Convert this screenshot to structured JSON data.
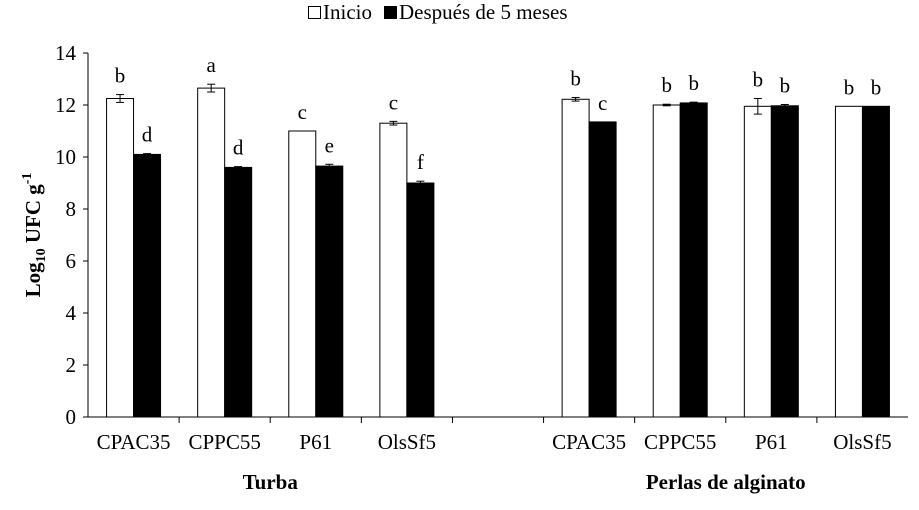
{
  "chart_data": {
    "type": "bar",
    "ylabel_main": "Log",
    "ylabel_sub": "10",
    "ylabel_rest": " UFC g",
    "ylabel_sup": "-1",
    "ylim": [
      0,
      14
    ],
    "yticks": [
      "0",
      "2",
      "4",
      "6",
      "8",
      "10",
      "12",
      "14"
    ],
    "grid": false,
    "legend_position": "top-center",
    "series": [
      {
        "name": "Inicio",
        "color": "#ffffff"
      },
      {
        "name": "Después de 5 meses",
        "color": "#000000"
      }
    ],
    "groups": [
      {
        "label": "Turba",
        "categories": [
          "CPAC35",
          "CPPC55",
          "P61",
          "OlsSf5"
        ],
        "values": [
          [
            12.25,
            10.1
          ],
          [
            12.65,
            9.6
          ],
          [
            11.0,
            9.65
          ],
          [
            11.3,
            9.0
          ]
        ],
        "errors": [
          [
            0.15,
            0.03
          ],
          [
            0.15,
            0.03
          ],
          [
            0.0,
            0.07
          ],
          [
            0.07,
            0.07
          ]
        ],
        "letters": [
          [
            "b",
            "d"
          ],
          [
            "a",
            "d"
          ],
          [
            "c",
            "e"
          ],
          [
            "c",
            "f"
          ]
        ]
      },
      {
        "label": "Perlas de alginato",
        "categories": [
          "CPAC35",
          "CPPC55",
          "P61",
          "OlsSf5"
        ],
        "values": [
          [
            12.22,
            11.35
          ],
          [
            12.0,
            12.08
          ],
          [
            11.95,
            11.97
          ],
          [
            11.95,
            11.95
          ]
        ],
        "errors": [
          [
            0.07,
            0.0
          ],
          [
            0.03,
            0.03
          ],
          [
            0.3,
            0.05
          ],
          [
            0.0,
            0.0
          ]
        ],
        "letters": [
          [
            "b",
            "c"
          ],
          [
            "b",
            "b"
          ],
          [
            "b",
            "b"
          ],
          [
            "b",
            "b"
          ]
        ]
      }
    ]
  }
}
